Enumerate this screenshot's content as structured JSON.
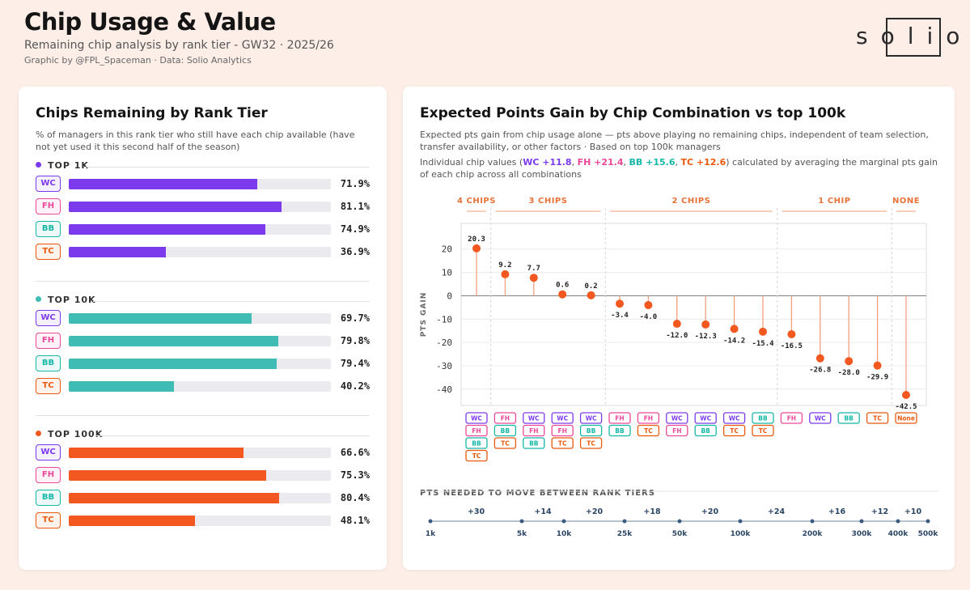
{
  "header": {
    "title": "Chip Usage & Value",
    "subtitle": "Remaining chip analysis by rank tier - GW32 · 2025/26",
    "credit": "Graphic by @FPL_Spaceman · Data: Solio Analytics",
    "logo": "solio"
  },
  "colors": {
    "WC": "#7c3aed",
    "FH": "#ec4899",
    "BB": "#14b8a6",
    "TC": "#ea580c",
    "top1k": "#7c3aed",
    "top10k": "#3fbdb5",
    "top100k": "#f2581f",
    "dot": "#f2581f",
    "stem": "#f4a07f",
    "group": "#e8733a"
  },
  "left": {
    "title": "Chips Remaining by Rank Tier",
    "desc": "% of managers in this rank tier who still have each chip available (have not yet used it this second half of the season)",
    "tiers": [
      {
        "label": "TOP 1K",
        "color": "#7c3aed",
        "rows": [
          {
            "chip": "WC",
            "value": 71.9,
            "pct": "71.9%"
          },
          {
            "chip": "FH",
            "value": 81.1,
            "pct": "81.1%"
          },
          {
            "chip": "BB",
            "value": 74.9,
            "pct": "74.9%"
          },
          {
            "chip": "TC",
            "value": 36.9,
            "pct": "36.9%"
          }
        ]
      },
      {
        "label": "TOP 10K",
        "color": "#3fbdb5",
        "rows": [
          {
            "chip": "WC",
            "value": 69.7,
            "pct": "69.7%"
          },
          {
            "chip": "FH",
            "value": 79.8,
            "pct": "79.8%"
          },
          {
            "chip": "BB",
            "value": 79.4,
            "pct": "79.4%"
          },
          {
            "chip": "TC",
            "value": 40.2,
            "pct": "40.2%"
          }
        ]
      },
      {
        "label": "TOP 100K",
        "color": "#f2581f",
        "rows": [
          {
            "chip": "WC",
            "value": 66.6,
            "pct": "66.6%"
          },
          {
            "chip": "FH",
            "value": 75.3,
            "pct": "75.3%"
          },
          {
            "chip": "BB",
            "value": 80.4,
            "pct": "80.4%"
          },
          {
            "chip": "TC",
            "value": 48.1,
            "pct": "48.1%"
          }
        ]
      }
    ]
  },
  "right": {
    "title": "Expected Points Gain by Chip Combination vs top 100k",
    "desc": "Expected pts gain from chip usage alone — pts above playing no remaining chips, independent of team selection, transfer availability, or other factors · Based on top 100k managers",
    "indiv": {
      "prefix": "Individual chip values (",
      "wc": "WC +11.8",
      "fh": "FH +21.4",
      "bb": "BB +15.6",
      "tc": "TC +12.6",
      "sep": ", ",
      "suffix": ") calculated by averaging the marginal pts gain of each chip across all combinations"
    }
  },
  "chart_data": [
    {
      "type": "bar",
      "title": "Chips Remaining by Rank Tier",
      "categories": [
        "WC",
        "FH",
        "BB",
        "TC"
      ],
      "series": [
        {
          "name": "TOP 1K",
          "values": [
            71.9,
            81.1,
            74.9,
            36.9
          ]
        },
        {
          "name": "TOP 10K",
          "values": [
            69.7,
            79.8,
            79.4,
            40.2
          ]
        },
        {
          "name": "TOP 100K",
          "values": [
            66.6,
            75.3,
            80.4,
            48.1
          ]
        }
      ],
      "ylim": [
        0,
        100
      ]
    },
    {
      "type": "scatter",
      "title": "Expected Points Gain by Chip Combination vs top 100k",
      "ylabel": "PTS GAIN",
      "ylim": [
        -47,
        31
      ],
      "yticks": [
        20,
        10,
        0,
        -10,
        -20,
        -30,
        -40
      ],
      "groups": [
        {
          "label": "4 CHIPS",
          "count": 1
        },
        {
          "label": "3 CHIPS",
          "count": 4
        },
        {
          "label": "2 CHIPS",
          "count": 6
        },
        {
          "label": "1 CHIP",
          "count": 4
        },
        {
          "label": "NONE",
          "count": 1
        }
      ],
      "points": [
        {
          "value": 20.3,
          "label": "20.3",
          "chips": [
            "WC",
            "FH",
            "BB",
            "TC"
          ]
        },
        {
          "value": 9.2,
          "label": "9.2",
          "chips": [
            "FH",
            "BB",
            "TC"
          ]
        },
        {
          "value": 7.7,
          "label": "7.7",
          "chips": [
            "WC",
            "FH",
            "BB"
          ]
        },
        {
          "value": 0.6,
          "label": "0.6",
          "chips": [
            "WC",
            "FH",
            "TC"
          ]
        },
        {
          "value": 0.2,
          "label": "0.2",
          "chips": [
            "WC",
            "BB",
            "TC"
          ]
        },
        {
          "value": -3.4,
          "label": "-3.4",
          "chips": [
            "FH",
            "BB"
          ]
        },
        {
          "value": -4.0,
          "label": "-4.0",
          "chips": [
            "FH",
            "TC"
          ]
        },
        {
          "value": -12.0,
          "label": "-12.0",
          "chips": [
            "WC",
            "FH"
          ]
        },
        {
          "value": -12.3,
          "label": "-12.3",
          "chips": [
            "WC",
            "BB"
          ]
        },
        {
          "value": -14.2,
          "label": "-14.2",
          "chips": [
            "WC",
            "TC"
          ]
        },
        {
          "value": -15.4,
          "label": "-15.4",
          "chips": [
            "BB",
            "TC"
          ]
        },
        {
          "value": -16.5,
          "label": "-16.5",
          "chips": [
            "FH"
          ]
        },
        {
          "value": -26.8,
          "label": "-26.8",
          "chips": [
            "WC"
          ]
        },
        {
          "value": -28.0,
          "label": "-28.0",
          "chips": [
            "BB"
          ]
        },
        {
          "value": -29.9,
          "label": "-29.9",
          "chips": [
            "TC"
          ]
        },
        {
          "value": -42.5,
          "label": "-42.5",
          "chips": [
            "None"
          ]
        }
      ]
    },
    {
      "type": "line",
      "title": "PTS NEEDED TO MOVE BETWEEN RANK TIERS",
      "ranks": [
        "1k",
        "5k",
        "10k",
        "25k",
        "50k",
        "100k",
        "200k",
        "300k",
        "400k",
        "500k"
      ],
      "gaps": [
        "+30",
        "+14",
        "+20",
        "+18",
        "+20",
        "+24",
        "+16",
        "+12",
        "+10"
      ]
    }
  ]
}
